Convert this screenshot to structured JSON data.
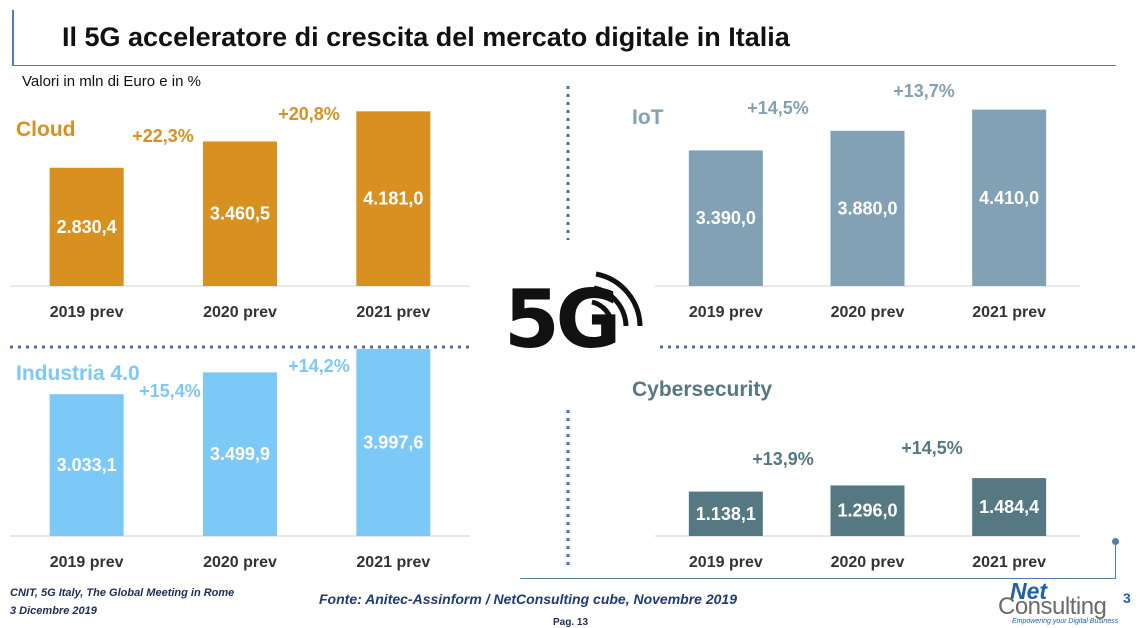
{
  "title": "Il 5G acceleratore di crescita del mercato digitale in Italia",
  "subtitle": "Valori in mln di Euro e in %",
  "center_logo": {
    "text": "5G",
    "icon": "signal-waves-icon"
  },
  "chart_data": [
    {
      "type": "bar",
      "title": "Cloud",
      "categories": [
        "2019 prev",
        "2020 prev",
        "2021 prev"
      ],
      "values": [
        2830.4,
        3460.5,
        4181.0
      ],
      "value_labels": [
        "2.830,4",
        "3.460,5",
        "4.181,0"
      ],
      "growth_labels": [
        "+22,3%",
        "+20,8%"
      ],
      "ylim": [
        0,
        4500
      ],
      "color": "#d89120",
      "label_color": "#d89120"
    },
    {
      "type": "bar",
      "title": "IoT",
      "categories": [
        "2019 prev",
        "2020 prev",
        "2021 prev"
      ],
      "values": [
        3390.0,
        3880.0,
        4410.0
      ],
      "value_labels": [
        "3.390,0",
        "3.880,0",
        "4.410,0"
      ],
      "growth_labels": [
        "+14,5%",
        "+13,7%"
      ],
      "ylim": [
        0,
        4900
      ],
      "color": "#82a1b5",
      "label_color": "#82a1b5"
    },
    {
      "type": "bar",
      "title": "Industria 4.0",
      "categories": [
        "2019 prev",
        "2020 prev",
        "2021 prev"
      ],
      "values": [
        3033.1,
        3499.9,
        3997.6
      ],
      "value_labels": [
        "3.033,1",
        "3.499,9",
        "3.997,6"
      ],
      "growth_labels": [
        "+15,4%",
        "+14,2%"
      ],
      "ylim": [
        0,
        3850
      ],
      "color": "#7cc8f6",
      "label_color": "#7cc8f6"
    },
    {
      "type": "bar",
      "title": "Cybersecurity",
      "categories": [
        "2019 prev",
        "2020 prev",
        "2021 prev"
      ],
      "values": [
        1138.1,
        1296.0,
        1484.4
      ],
      "value_labels": [
        "1.138,1",
        "1.296,0",
        "1.484,4"
      ],
      "growth_labels": [
        "+13,9%",
        "+14,5%"
      ],
      "ylim": [
        0,
        5100
      ],
      "color": "#557883",
      "label_color": "#557883"
    }
  ],
  "footer": {
    "event_line1": "CNIT, 5G Italy, The Global Meeting in Rome",
    "event_line2": "3 Dicembre 2019",
    "source": "Fonte: Anitec-Assinform / NetConsulting cube, Novembre  2019",
    "page": "Pag. 13",
    "logo_net": "Net",
    "logo_consulting": "Consulting",
    "logo_sup": "3",
    "logo_tagline": "Empowering your Digital Business"
  }
}
